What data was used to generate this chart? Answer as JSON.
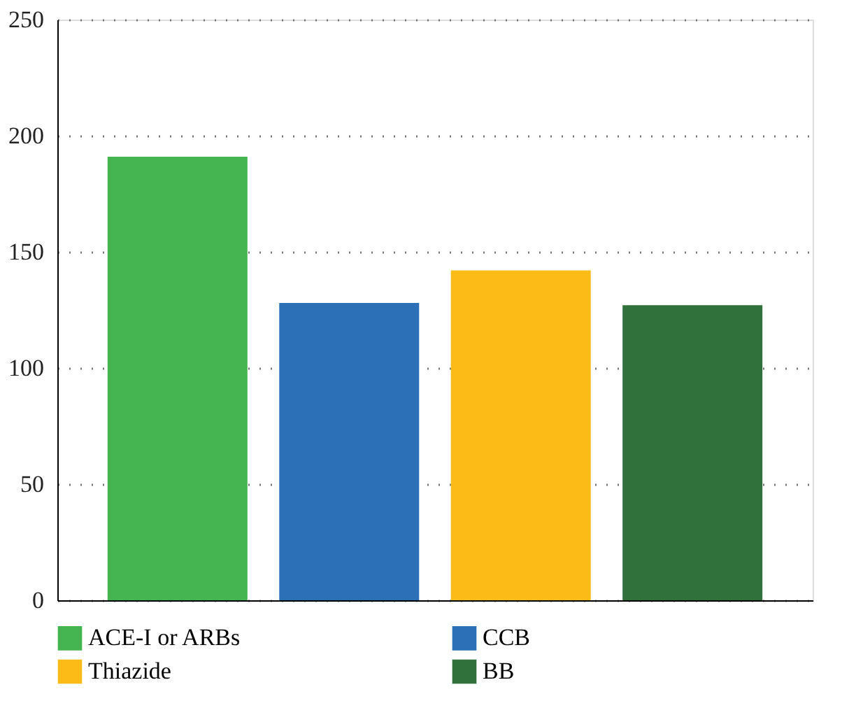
{
  "chart_data": {
    "type": "bar",
    "categories": [
      null,
      null,
      null,
      null
    ],
    "series": [
      {
        "name": "ACE-I or ARBs",
        "color": "#45b64f",
        "values": [
          191,
          null,
          null,
          null
        ]
      },
      {
        "name": "CCB",
        "color": "#2c71b8",
        "values": [
          null,
          128,
          null,
          null
        ]
      },
      {
        "name": "Thiazide",
        "color": "#fdbb18",
        "values": [
          null,
          null,
          142,
          null
        ]
      },
      {
        "name": "BB",
        "color": "#30713b",
        "values": [
          null,
          null,
          null,
          127
        ]
      }
    ],
    "ylim": [
      0,
      250
    ],
    "yticks": [
      0,
      50,
      100,
      150,
      200,
      250
    ],
    "grid": "y",
    "legend": "bottom",
    "tick_labels": "y"
  }
}
